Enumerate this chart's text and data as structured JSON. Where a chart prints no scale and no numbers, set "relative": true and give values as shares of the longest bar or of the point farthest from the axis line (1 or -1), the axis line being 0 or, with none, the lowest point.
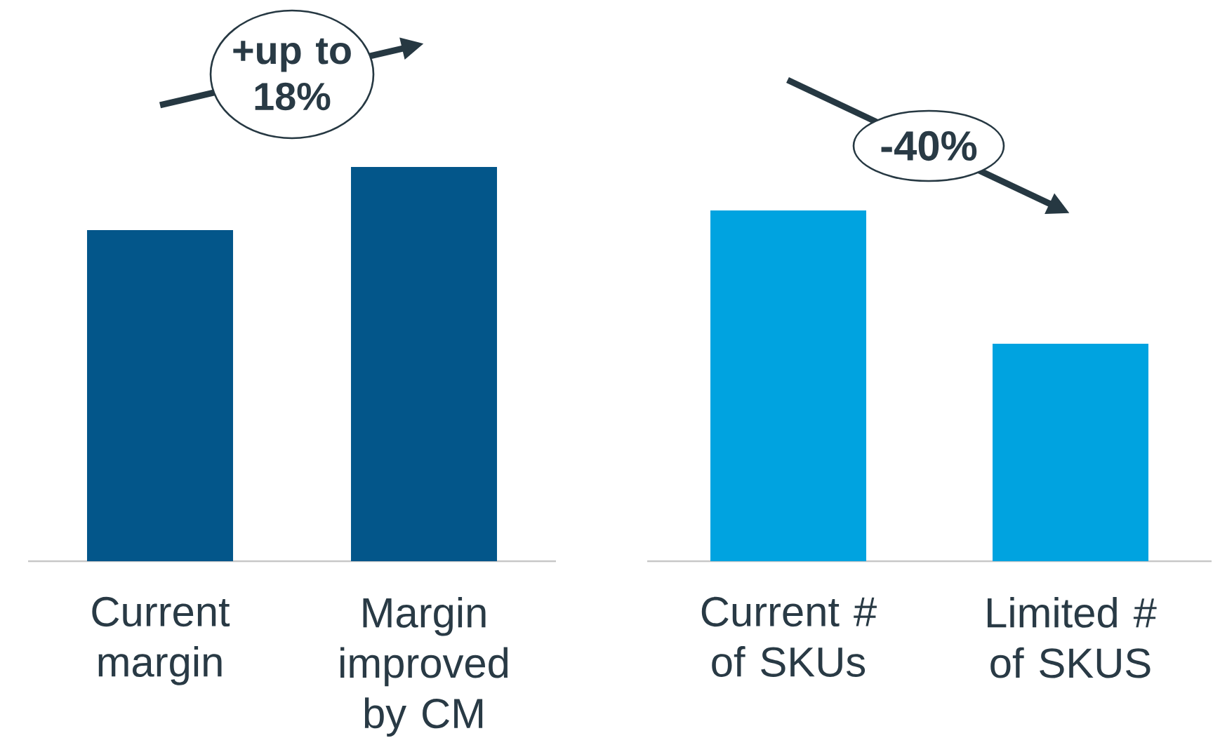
{
  "chart_data": [
    {
      "type": "bar",
      "categories": [
        "Current margin",
        "Margin improved by CM"
      ],
      "values": [
        0.84,
        1
      ],
      "color": "#03568a",
      "relative": true,
      "annotations": [
        "+up to 18%"
      ]
    },
    {
      "type": "bar",
      "categories": [
        "Current # of SKUs",
        "Limited # of SKUS"
      ],
      "values": [
        1,
        0.62
      ],
      "color": "#00a3e0",
      "relative": true,
      "annotations": [
        "-40%"
      ]
    }
  ]
}
